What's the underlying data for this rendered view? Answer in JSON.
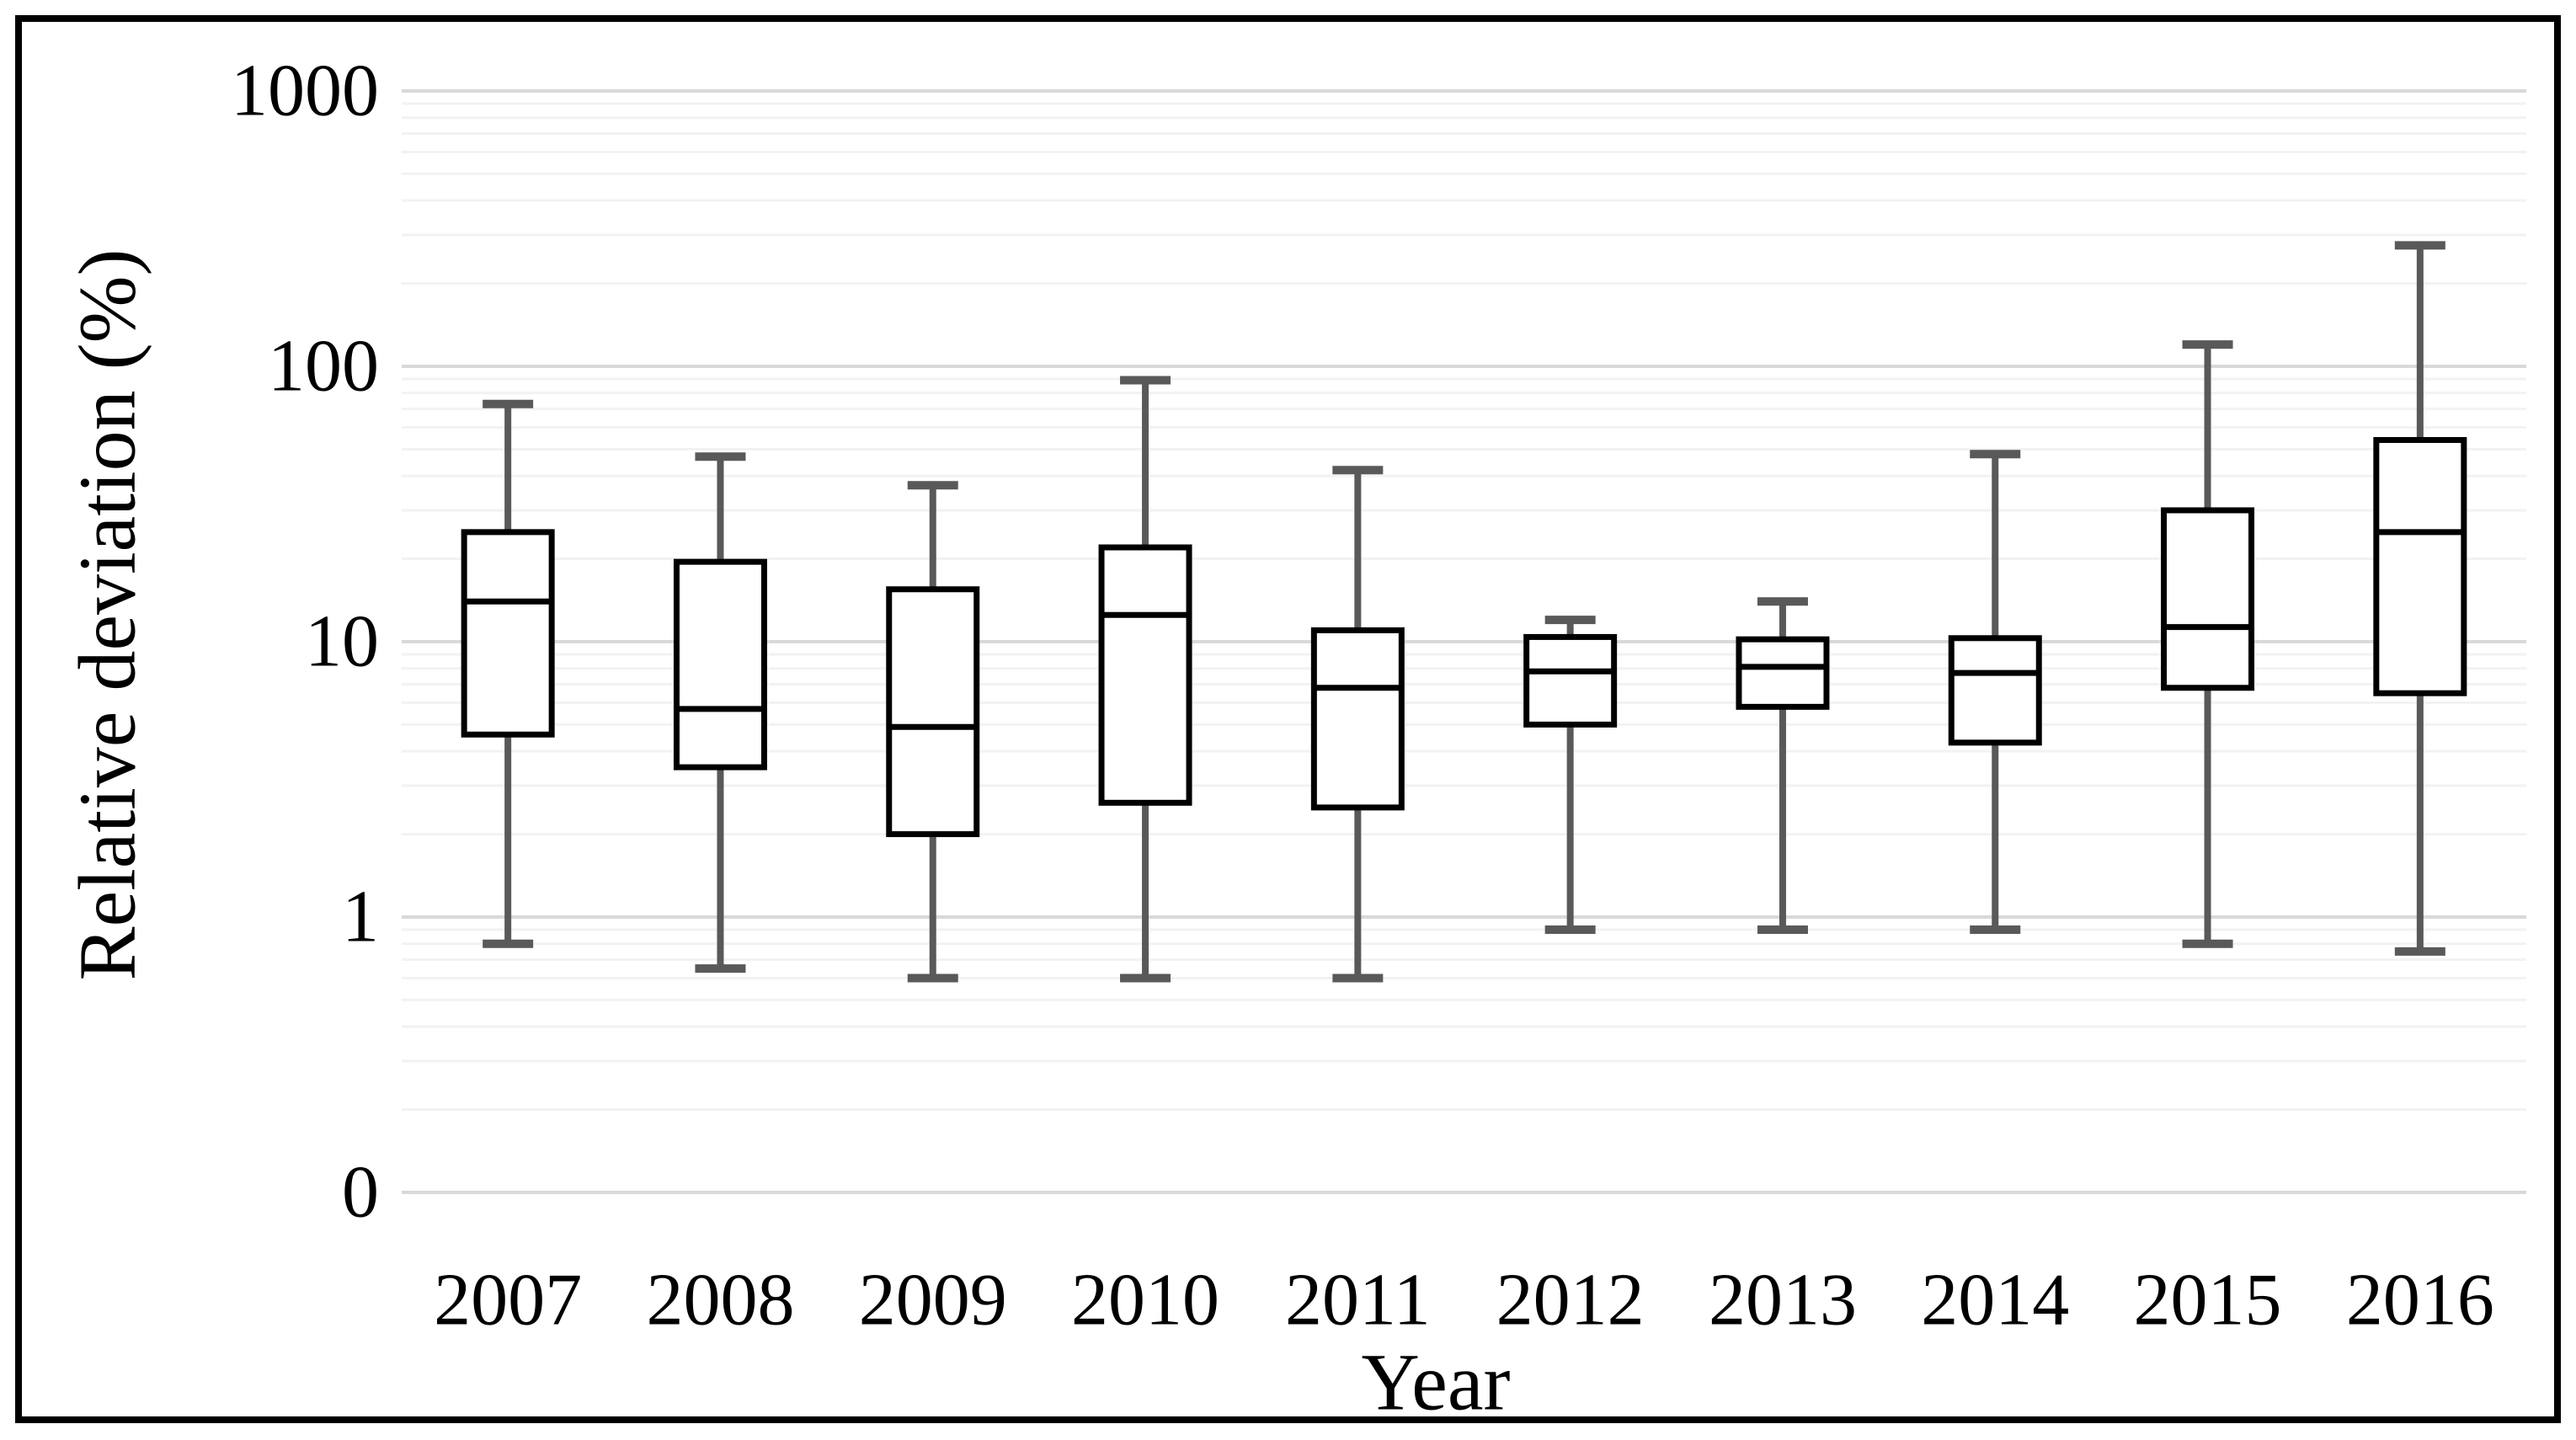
{
  "figure": {
    "background": "#ffffff",
    "border_color": "#000000"
  },
  "style": {
    "box_stroke": "#000000",
    "box_fill": "#ffffff",
    "whisker_color": "#595959",
    "gridline_major": "#d9d9d9",
    "gridline_minor": "#f2f2f2"
  },
  "chart_data": {
    "type": "box",
    "title": "",
    "xlabel": "Year",
    "ylabel": "Relative deviation (%)",
    "y_scale": "log",
    "ylim": [
      0.1,
      1000
    ],
    "grid": "horizontal log major + minor, no vertical grid",
    "legend": "none",
    "y_ticks": [
      {
        "label": "1000",
        "value": 1000
      },
      {
        "label": "100",
        "value": 100
      },
      {
        "label": "10",
        "value": 10
      },
      {
        "label": "1",
        "value": 1
      },
      {
        "label": "0",
        "value": 0.1
      }
    ],
    "categories": [
      "2007",
      "2008",
      "2009",
      "2010",
      "2011",
      "2012",
      "2013",
      "2014",
      "2015",
      "2016"
    ],
    "series": [
      {
        "year": "2007",
        "min": 0.8,
        "q1": 4.6,
        "median": 14.0,
        "q3": 25.0,
        "max": 73
      },
      {
        "year": "2008",
        "min": 0.65,
        "q1": 3.5,
        "median": 5.7,
        "q3": 19.5,
        "max": 47
      },
      {
        "year": "2009",
        "min": 0.6,
        "q1": 2.0,
        "median": 4.9,
        "q3": 15.5,
        "max": 37
      },
      {
        "year": "2010",
        "min": 0.6,
        "q1": 2.6,
        "median": 12.5,
        "q3": 22.0,
        "max": 89
      },
      {
        "year": "2011",
        "min": 0.6,
        "q1": 2.5,
        "median": 6.8,
        "q3": 11.0,
        "max": 42
      },
      {
        "year": "2012",
        "min": 0.9,
        "q1": 5.0,
        "median": 7.8,
        "q3": 10.4,
        "max": 12
      },
      {
        "year": "2013",
        "min": 0.9,
        "q1": 5.8,
        "median": 8.1,
        "q3": 10.2,
        "max": 14
      },
      {
        "year": "2014",
        "min": 0.9,
        "q1": 4.3,
        "median": 7.7,
        "q3": 10.3,
        "max": 48
      },
      {
        "year": "2015",
        "min": 0.8,
        "q1": 6.8,
        "median": 11.3,
        "q3": 30.0,
        "max": 120
      },
      {
        "year": "2016",
        "min": 0.75,
        "q1": 6.5,
        "median": 25.0,
        "q3": 54.0,
        "max": 275
      }
    ]
  }
}
